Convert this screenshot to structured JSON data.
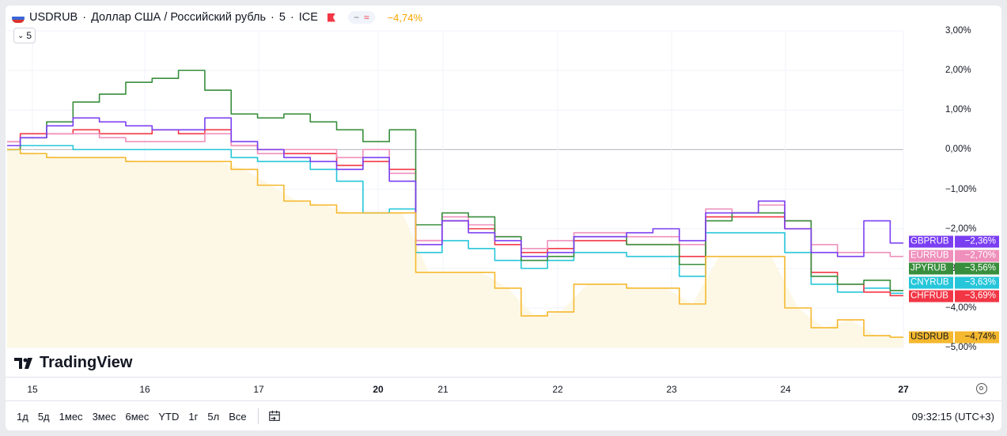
{
  "legend": {
    "symbol": "USDRUB",
    "description": "Доллар США / Российский рубль",
    "interval": "5",
    "exchange": "ICE",
    "sep": "·",
    "pill_a": "−",
    "pill_b": "≈",
    "change": "−4,74%"
  },
  "sub_selector": {
    "label": "5",
    "icon": "chevron-down-icon"
  },
  "logo_text": "TradingView",
  "timezone_clock": "09:32:15 (UTC+3)",
  "ranges": [
    "1д",
    "5д",
    "1мес",
    "3мес",
    "6мес",
    "YTD",
    "1г",
    "5л",
    "Все"
  ],
  "chart_data": {
    "type": "line",
    "ylim": [
      -5.0,
      3.0
    ],
    "y_ticks": [
      "3,00%",
      "2,00%",
      "1,00%",
      "0,00%",
      "−1,00%",
      "−2,00%",
      "−3,00%",
      "−4,00%",
      "−5,00%"
    ],
    "x_ticks": [
      {
        "label": "15",
        "bold": false
      },
      {
        "label": "16",
        "bold": false
      },
      {
        "label": "17",
        "bold": false
      },
      {
        "label": "20",
        "bold": true
      },
      {
        "label": "21",
        "bold": false
      },
      {
        "label": "22",
        "bold": false
      },
      {
        "label": "23",
        "bold": false
      },
      {
        "label": "24",
        "bold": false
      },
      {
        "label": "27",
        "bold": true
      }
    ],
    "series": [
      {
        "name": "USDRUB",
        "last": "−4,74%",
        "color": "#f5b82e",
        "values": [
          0.0,
          -0.1,
          -0.2,
          -0.2,
          -0.2,
          -0.3,
          -0.3,
          -0.3,
          -0.3,
          -0.5,
          -0.9,
          -1.3,
          -1.4,
          -1.6,
          -1.6,
          -1.6,
          -3.1,
          -3.1,
          -3.1,
          -3.5,
          -4.2,
          -4.1,
          -3.4,
          -3.4,
          -3.5,
          -3.5,
          -3.9,
          -2.7,
          -2.7,
          -2.7,
          -4.0,
          -4.5,
          -4.3,
          -4.7,
          -4.74
        ]
      },
      {
        "name": "GBPRUB",
        "last": "−2,36%",
        "color": "#7b3ff2",
        "values": [
          0.1,
          0.3,
          0.6,
          0.8,
          0.7,
          0.6,
          0.5,
          0.5,
          0.8,
          0.2,
          0.0,
          -0.2,
          -0.3,
          -0.5,
          -0.2,
          -0.8,
          -2.4,
          -1.8,
          -2.1,
          -2.3,
          -2.7,
          -2.6,
          -2.2,
          -2.2,
          -2.1,
          -2.0,
          -2.3,
          -1.6,
          -1.6,
          -1.3,
          -2.0,
          -2.6,
          -2.7,
          -1.8,
          -2.36
        ]
      },
      {
        "name": "EURRUB",
        "last": "−2,70%",
        "color": "#ef8fbb",
        "values": [
          0.2,
          0.3,
          0.4,
          0.4,
          0.3,
          0.2,
          0.2,
          0.2,
          0.4,
          0.1,
          -0.1,
          0.0,
          0.0,
          -0.2,
          0.0,
          -0.6,
          -2.3,
          -1.7,
          -1.9,
          -2.2,
          -2.5,
          -2.3,
          -2.1,
          -2.1,
          -2.2,
          -2.2,
          -2.4,
          -1.5,
          -1.6,
          -1.4,
          -1.8,
          -2.4,
          -2.6,
          -2.6,
          -2.7
        ]
      },
      {
        "name": "JPYRUB",
        "last": "−3,56%",
        "color": "#388e3c",
        "values": [
          0.0,
          0.3,
          0.7,
          1.2,
          1.4,
          1.7,
          1.8,
          2.0,
          1.5,
          0.9,
          0.8,
          0.9,
          0.7,
          0.5,
          0.2,
          0.5,
          -1.9,
          -1.6,
          -1.7,
          -2.2,
          -2.8,
          -2.7,
          -2.2,
          -2.2,
          -2.4,
          -2.4,
          -2.9,
          -1.8,
          -1.6,
          -1.6,
          -1.8,
          -3.2,
          -3.4,
          -3.3,
          -3.56
        ]
      },
      {
        "name": "CNYRUB",
        "last": "−3,63%",
        "color": "#26c6da",
        "values": [
          0.0,
          0.1,
          0.1,
          0.0,
          0.0,
          0.0,
          0.0,
          0.0,
          0.0,
          -0.2,
          -0.3,
          -0.3,
          -0.5,
          -0.8,
          -1.6,
          -1.5,
          -2.6,
          -2.3,
          -2.5,
          -2.8,
          -3.0,
          -2.8,
          -2.6,
          -2.6,
          -2.7,
          -2.7,
          -3.2,
          -2.1,
          -2.1,
          -2.1,
          -2.6,
          -3.4,
          -3.6,
          -3.5,
          -3.63
        ]
      },
      {
        "name": "CHFRUB",
        "last": "−3,69%",
        "color": "#f23645",
        "values": [
          0.2,
          0.4,
          0.4,
          0.5,
          0.4,
          0.4,
          0.5,
          0.4,
          0.5,
          0.1,
          0.0,
          -0.1,
          -0.1,
          -0.4,
          -0.3,
          -0.5,
          -2.3,
          -1.8,
          -2.0,
          -2.4,
          -2.6,
          -2.5,
          -2.3,
          -2.3,
          -2.4,
          -2.4,
          -2.7,
          -1.7,
          -1.7,
          -1.7,
          -2.0,
          -3.1,
          -3.4,
          -3.6,
          -3.69
        ]
      }
    ]
  }
}
